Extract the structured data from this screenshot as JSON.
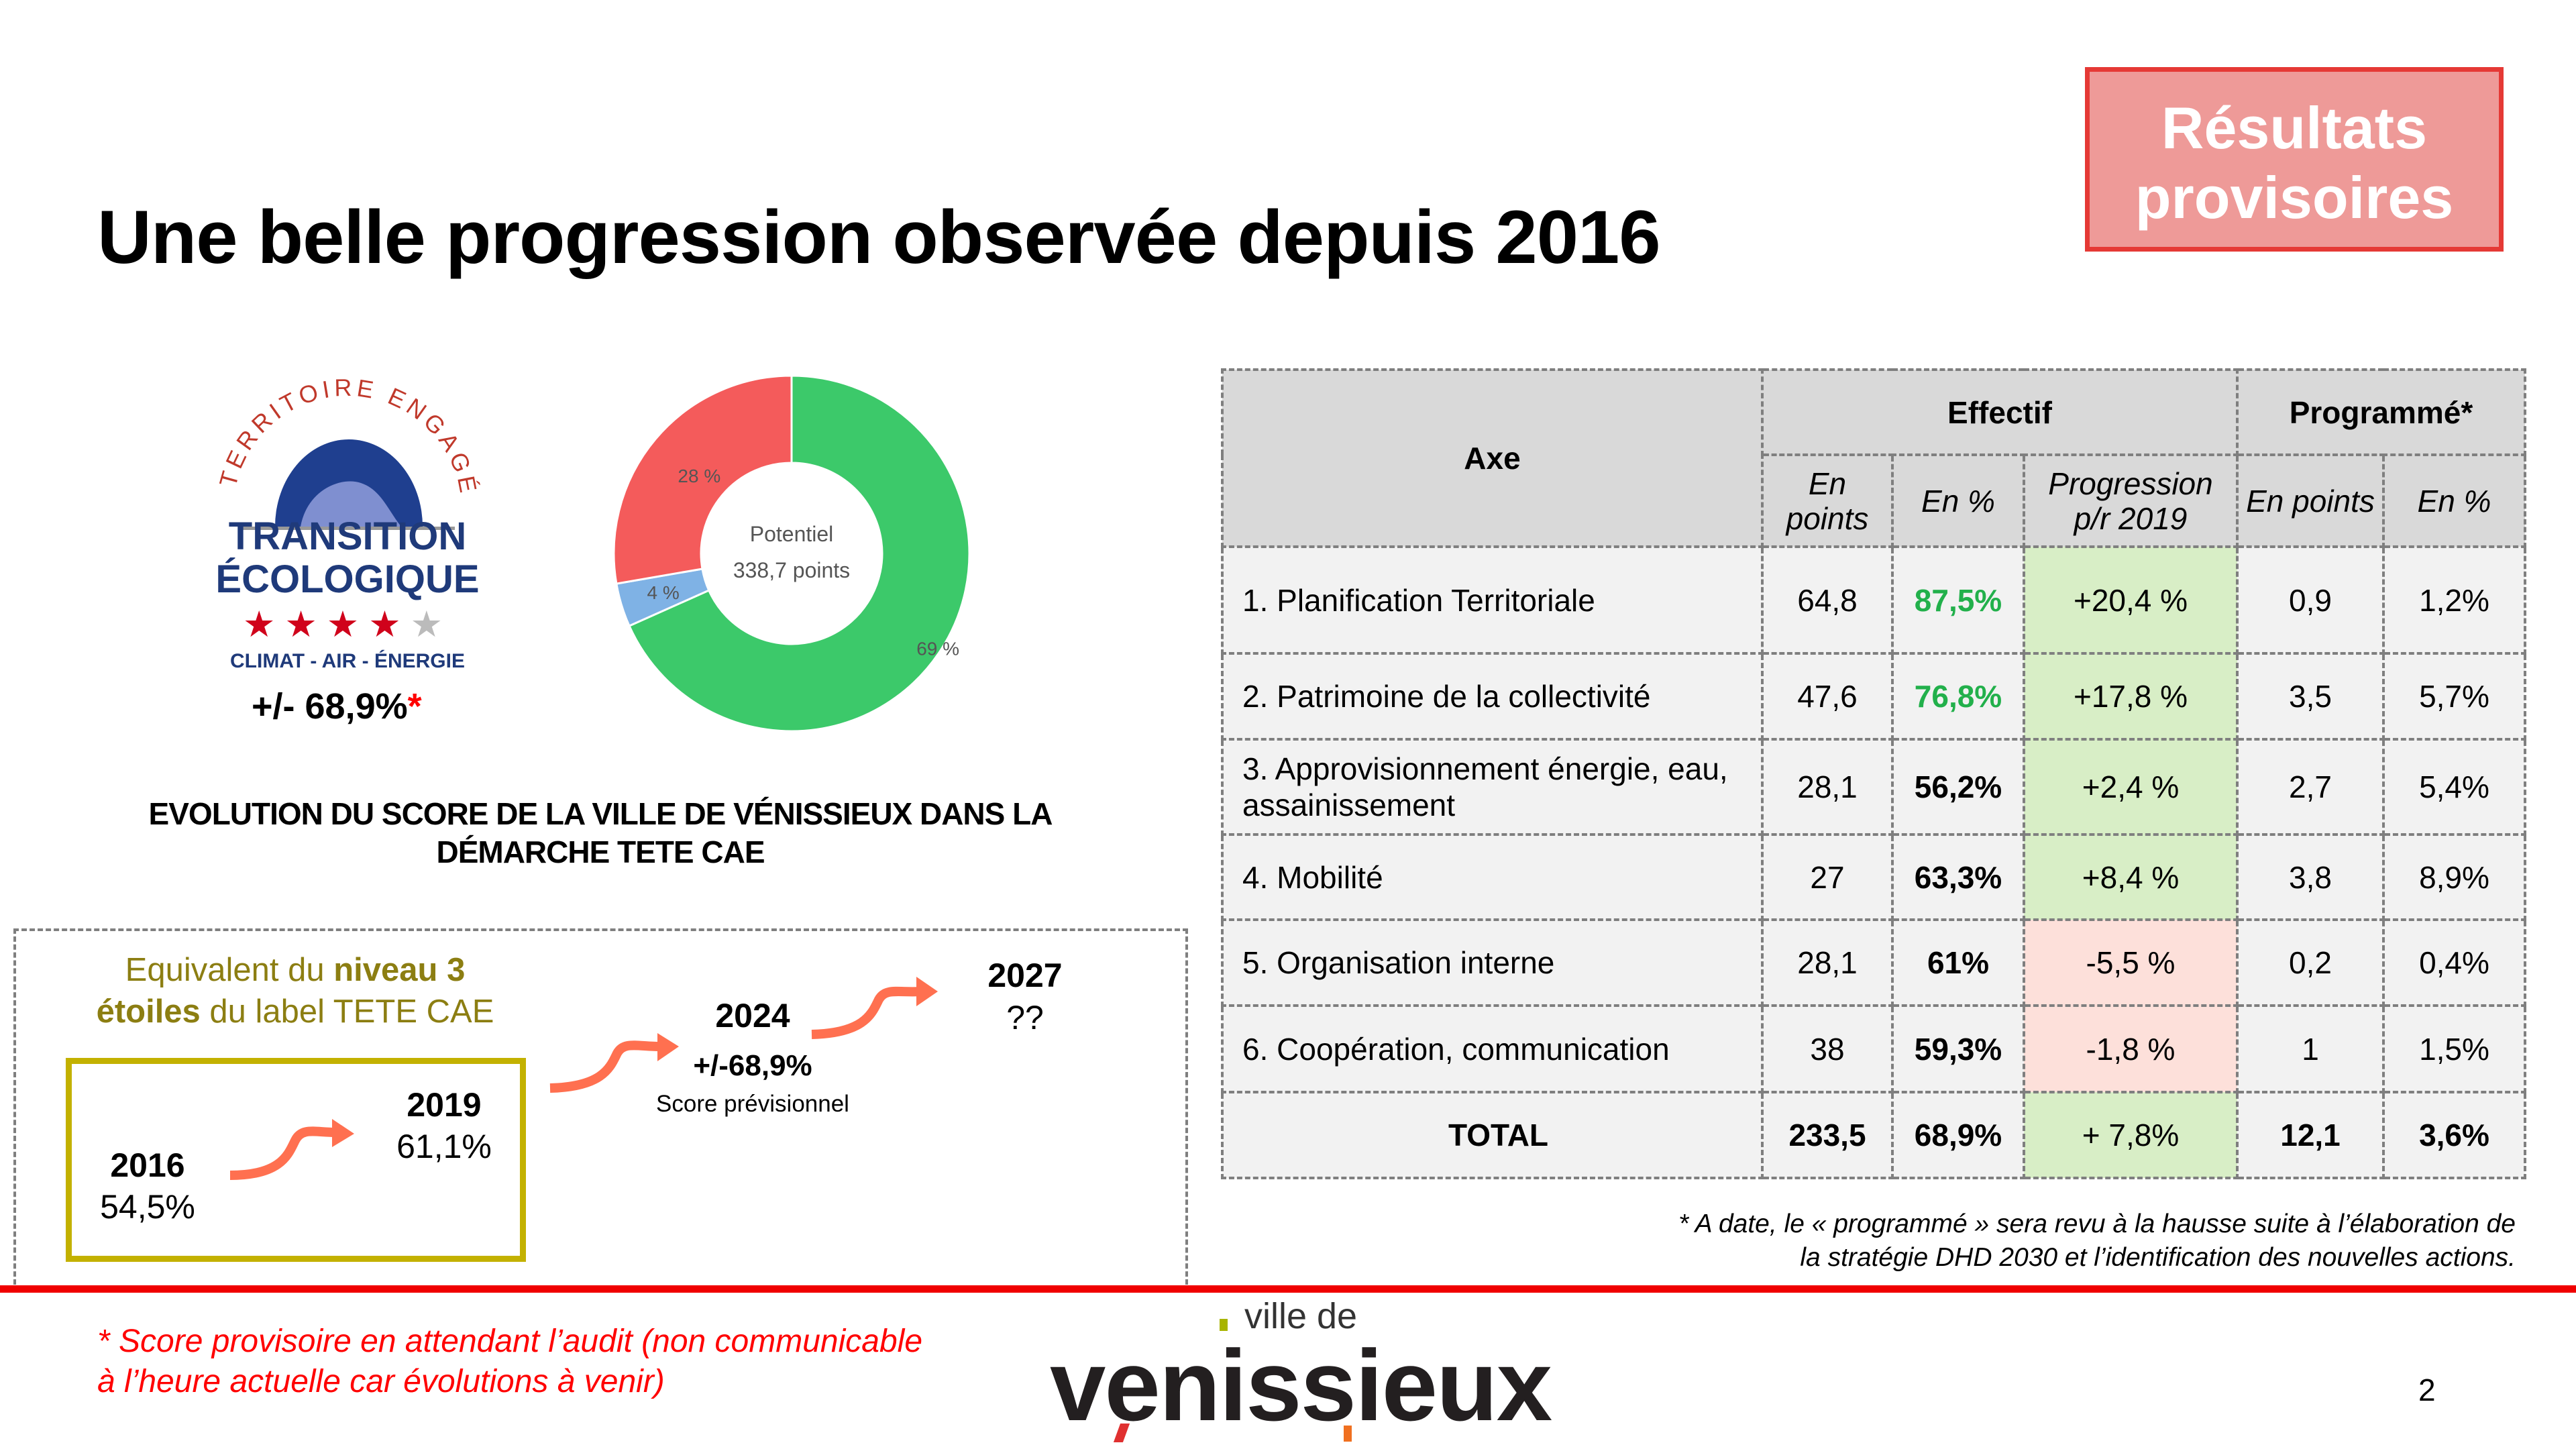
{
  "title": "Une belle progression observée depuis 2016",
  "badge": {
    "line1": "Résultats",
    "line2": "provisoires"
  },
  "logo_te": {
    "arc_text": "TERRITOIRE ENGAGÉ",
    "line1": "TRANSITION",
    "line2": "ÉCOLOGIQUE",
    "tagline": "CLIMAT - AIR - ÉNERGIE",
    "stars_filled": 4,
    "stars_total": 5
  },
  "score": {
    "value": "+/- 68,9%",
    "asterisk": "*"
  },
  "donut": {
    "center_label": "Potentiel",
    "center_value": "338,7 points",
    "slices": [
      {
        "label": "69 %",
        "value": 69,
        "color": "#3cc96a"
      },
      {
        "label": "4 %",
        "value": 4,
        "color": "#7fb2e5"
      },
      {
        "label": "28 %",
        "value": 28,
        "color": "#f45b5b"
      }
    ]
  },
  "evolution_heading": {
    "line1": "EVOLUTION DU SCORE DE LA VILLE DE VÉNISSIEUX DANS LA",
    "line2": "DÉMARCHE TETE CAE"
  },
  "equivalent": {
    "t1": "Equivalent du ",
    "b1": "niveau 3",
    "b2": "étoiles",
    "t2": " du label TETE CAE"
  },
  "timeline": [
    {
      "year": "2016",
      "value": "54,5%"
    },
    {
      "year": "2019",
      "value": "61,1%"
    },
    {
      "year": "2024",
      "value": "+/-68,9%",
      "note": "Score prévisionnel"
    },
    {
      "year": "2027",
      "value": "??"
    }
  ],
  "table": {
    "headers": {
      "axe": "Axe",
      "effectif": "Effectif",
      "programme": "Programmé*",
      "en_points": "En points",
      "en_pct": "En %",
      "progression": "Progression p/r 2019",
      "en_points2": "En points",
      "en_pct2": "En %"
    },
    "rows": [
      {
        "axe": "1. Planification Territoriale",
        "pts": "64,8",
        "pct": "87,5%",
        "prog": "+20,4 %",
        "ppts": "0,9",
        "ppct": "1,2%"
      },
      {
        "axe": "2. Patrimoine de la collectivité",
        "pts": "47,6",
        "pct": "76,8%",
        "prog": "+17,8 %",
        "ppts": "3,5",
        "ppct": "5,7%"
      },
      {
        "axe": "3. Approvisionnement énergie, eau, assainissement",
        "pts": "28,1",
        "pct": "56,2%",
        "prog": "+2,4 %",
        "ppts": "2,7",
        "ppct": "5,4%"
      },
      {
        "axe": "4. Mobilité",
        "pts": "27",
        "pct": "63,3%",
        "prog": "+8,4 %",
        "ppts": "3,8",
        "ppct": "8,9%"
      },
      {
        "axe": "5. Organisation interne",
        "pts": "28,1",
        "pct": "61%",
        "prog": "-5,5 %",
        "ppts": "0,2",
        "ppct": "0,4%"
      },
      {
        "axe": "6. Coopération, communication",
        "pts": "38",
        "pct": "59,3%",
        "prog": "-1,8 %",
        "ppts": "1",
        "ppct": "1,5%"
      }
    ],
    "total": {
      "axe": "TOTAL",
      "pts": "233,5",
      "pct": "68,9%",
      "prog": "+ 7,8%",
      "ppts": "12,1",
      "ppct": "3,6%"
    }
  },
  "table_note": {
    "line1": "* A date, le « programmé » sera revu à la hausse suite à l’élaboration de",
    "line2": "la stratégie DHD 2030 et l’identification des nouvelles actions."
  },
  "footnote": {
    "line1": "* Score provisoire en attendant l’audit (non communicable",
    "line2": "à l’heure actuelle car évolutions à venir)"
  },
  "brand": {
    "small": "ville de",
    "big": "venissieux"
  },
  "page_number": "2"
}
